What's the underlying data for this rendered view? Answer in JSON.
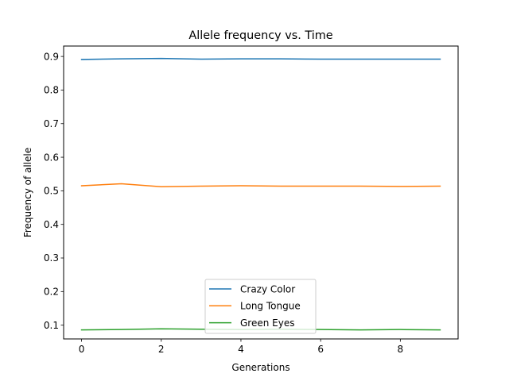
{
  "chart_data": {
    "type": "line",
    "title": "Allele frequency vs. Time",
    "xlabel": "Generations",
    "ylabel": "Frequency of allele",
    "xlim": [
      -0.45,
      9.45
    ],
    "ylim": [
      0.059,
      0.931
    ],
    "x": [
      0,
      1,
      2,
      3,
      4,
      5,
      6,
      7,
      8,
      9
    ],
    "xticks": [
      0,
      2,
      4,
      6,
      8
    ],
    "yticks": [
      0.1,
      0.2,
      0.3,
      0.4,
      0.5,
      0.6,
      0.7,
      0.8,
      0.9
    ],
    "grid": false,
    "legend_position": "lower center",
    "series": [
      {
        "name": "Crazy Color",
        "color": "#1f77b4",
        "values": [
          0.891,
          0.893,
          0.894,
          0.892,
          0.893,
          0.893,
          0.892,
          0.892,
          0.892,
          0.892
        ]
      },
      {
        "name": "Long Tongue",
        "color": "#ff7f0e",
        "values": [
          0.515,
          0.521,
          0.512,
          0.514,
          0.515,
          0.514,
          0.514,
          0.514,
          0.513,
          0.514
        ]
      },
      {
        "name": "Green Eyes",
        "color": "#2ca02c",
        "values": [
          0.086,
          0.087,
          0.089,
          0.088,
          0.087,
          0.088,
          0.087,
          0.086,
          0.087,
          0.086
        ]
      }
    ]
  }
}
